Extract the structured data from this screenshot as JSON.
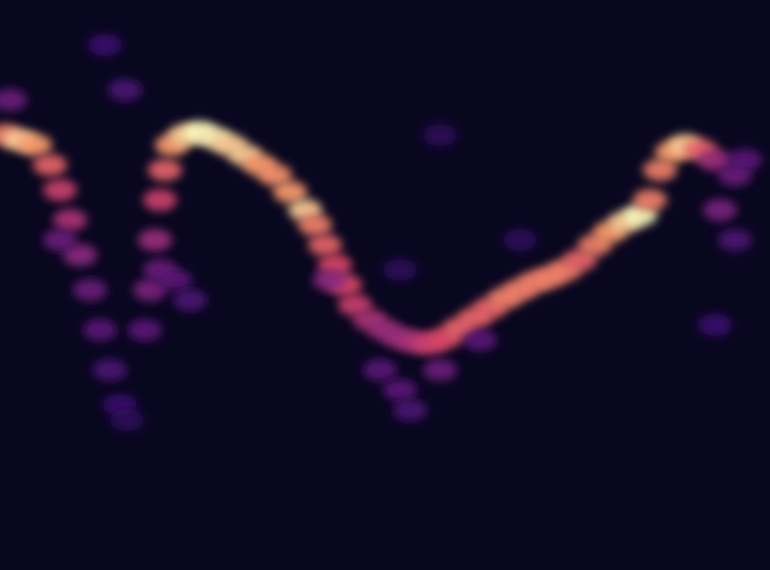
{
  "chart_data": {
    "type": "heatmap",
    "tick_labels": false,
    "xlim": [
      0,
      770
    ],
    "ylim": [
      0,
      570
    ],
    "zlim": [
      0,
      1
    ],
    "x": [
      5,
      20,
      35,
      50,
      60,
      70,
      80,
      90,
      100,
      110,
      120,
      127,
      10,
      105,
      125,
      60,
      145,
      150,
      155,
      160,
      165,
      172,
      185,
      200,
      215,
      230,
      245,
      260,
      275,
      290,
      305,
      315,
      325,
      335,
      345,
      355,
      370,
      385,
      400,
      415,
      430,
      445,
      460,
      475,
      490,
      505,
      520,
      535,
      550,
      565,
      580,
      595,
      610,
      625,
      640,
      650,
      660,
      672,
      685,
      700,
      715,
      735,
      745,
      720,
      735,
      715,
      160,
      175,
      190,
      330,
      380,
      400,
      410,
      440,
      480,
      400,
      520,
      440
    ],
    "values": [
      435,
      430,
      425,
      405,
      380,
      350,
      315,
      280,
      240,
      200,
      165,
      150,
      470,
      525,
      480,
      330,
      240,
      280,
      330,
      370,
      400,
      425,
      435,
      438,
      432,
      425,
      415,
      405,
      395,
      378,
      360,
      345,
      325,
      305,
      285,
      265,
      250,
      240,
      232,
      228,
      226,
      232,
      242,
      252,
      262,
      272,
      280,
      288,
      293,
      300,
      310,
      325,
      338,
      348,
      355,
      370,
      400,
      418,
      425,
      420,
      410,
      395,
      410,
      360,
      330,
      245,
      300,
      290,
      270,
      290,
      200,
      180,
      160,
      200,
      230,
      300,
      330,
      435
    ],
    "intensity": [
      0.85,
      0.95,
      0.9,
      0.8,
      0.7,
      0.6,
      0.5,
      0.4,
      0.35,
      0.3,
      0.25,
      0.2,
      0.4,
      0.25,
      0.3,
      0.4,
      0.35,
      0.45,
      0.55,
      0.7,
      0.8,
      0.9,
      0.95,
      1.0,
      0.98,
      0.95,
      0.95,
      0.9,
      0.88,
      0.9,
      0.95,
      0.85,
      0.8,
      0.75,
      0.75,
      0.7,
      0.6,
      0.55,
      0.55,
      0.6,
      0.7,
      0.75,
      0.8,
      0.8,
      0.8,
      0.85,
      0.85,
      0.85,
      0.85,
      0.85,
      0.8,
      0.85,
      0.9,
      0.95,
      1.0,
      0.85,
      0.85,
      0.9,
      0.95,
      0.8,
      0.55,
      0.4,
      0.35,
      0.45,
      0.3,
      0.25,
      0.4,
      0.35,
      0.3,
      0.5,
      0.35,
      0.35,
      0.3,
      0.4,
      0.35,
      0.2,
      0.2,
      0.2
    ]
  }
}
